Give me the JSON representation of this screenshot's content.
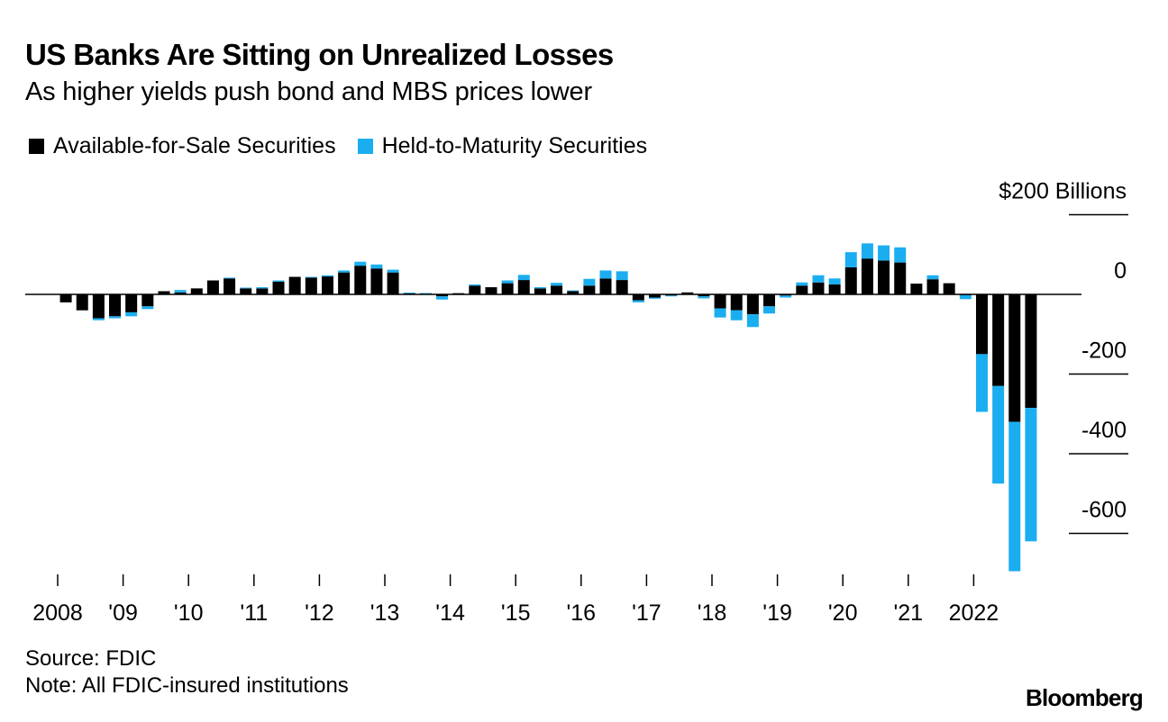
{
  "header": {
    "title": "US Banks Are Sitting on Unrealized Losses",
    "subtitle": "As higher yields push bond and MBS prices lower"
  },
  "legend": [
    {
      "label": "Available-for-Sale Securities",
      "color": "#000000"
    },
    {
      "label": "Held-to-Maturity Securities",
      "color": "#1aaef0"
    }
  ],
  "footer": {
    "source": "Source: FDIC",
    "note": "Note: All FDIC-insured institutions",
    "brand": "Bloomberg"
  },
  "chart_data": {
    "type": "bar",
    "stacked": true,
    "unit_label": "$200 Billions",
    "ylim": [
      -700,
      200
    ],
    "yticks": [
      {
        "value": 200,
        "label": "$200 Billions"
      },
      {
        "value": 0,
        "label": "0"
      },
      {
        "value": -200,
        "label": "-200"
      },
      {
        "value": -400,
        "label": "-400"
      },
      {
        "value": -600,
        "label": "-600"
      }
    ],
    "x_tick_labels": [
      "2008",
      "'09",
      "'10",
      "'11",
      "'12",
      "'13",
      "'14",
      "'15",
      "'16",
      "'17",
      "'18",
      "'19",
      "'20",
      "'21",
      "2022"
    ],
    "quarters": [
      "2008Q1",
      "2008Q2",
      "2008Q3",
      "2008Q4",
      "2009Q1",
      "2009Q2",
      "2009Q3",
      "2009Q4",
      "2010Q1",
      "2010Q2",
      "2010Q3",
      "2010Q4",
      "2011Q1",
      "2011Q2",
      "2011Q3",
      "2011Q4",
      "2012Q1",
      "2012Q2",
      "2012Q3",
      "2012Q4",
      "2013Q1",
      "2013Q2",
      "2013Q3",
      "2013Q4",
      "2014Q1",
      "2014Q2",
      "2014Q3",
      "2014Q4",
      "2015Q1",
      "2015Q2",
      "2015Q3",
      "2015Q4",
      "2016Q1",
      "2016Q2",
      "2016Q3",
      "2016Q4",
      "2017Q1",
      "2017Q2",
      "2017Q3",
      "2017Q4",
      "2018Q1",
      "2018Q2",
      "2018Q3",
      "2018Q4",
      "2019Q1",
      "2019Q2",
      "2019Q3",
      "2019Q4",
      "2020Q1",
      "2020Q2",
      "2020Q3",
      "2020Q4",
      "2021Q1",
      "2021Q2",
      "2021Q3",
      "2021Q4",
      "2022Q1",
      "2022Q2",
      "2022Q3",
      "2022Q4"
    ],
    "series": [
      {
        "name": "Available-for-Sale Securities",
        "color": "#000000",
        "values": [
          -20,
          -40,
          -60,
          -55,
          -45,
          -30,
          8,
          5,
          15,
          35,
          40,
          15,
          15,
          32,
          44,
          42,
          45,
          55,
          72,
          65,
          55,
          4,
          3,
          -5,
          3,
          22,
          18,
          28,
          36,
          15,
          22,
          8,
          22,
          40,
          36,
          -15,
          -8,
          -3,
          5,
          -5,
          -35,
          -40,
          -50,
          -30,
          -3,
          22,
          30,
          25,
          68,
          90,
          85,
          80,
          27,
          38,
          28,
          -2,
          -150,
          -230,
          -320,
          -285
        ]
      },
      {
        "name": "Held-to-Maturity Securities",
        "color": "#1aaef0",
        "values": [
          0,
          0,
          -5,
          -5,
          -10,
          -7,
          0,
          6,
          0,
          0,
          2,
          2,
          3,
          3,
          0,
          2,
          3,
          5,
          10,
          10,
          7,
          -2,
          -2,
          -8,
          0,
          3,
          0,
          7,
          13,
          3,
          7,
          2,
          17,
          20,
          22,
          -5,
          -3,
          -2,
          0,
          -5,
          -23,
          -25,
          -32,
          -18,
          -5,
          8,
          18,
          15,
          38,
          38,
          38,
          38,
          0,
          10,
          0,
          -10,
          -145,
          -245,
          -375,
          -335
        ]
      }
    ]
  }
}
